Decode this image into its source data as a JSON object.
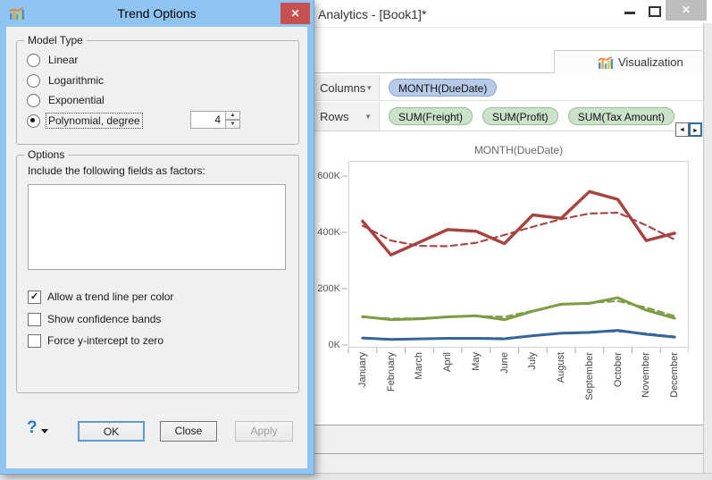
{
  "dialog": {
    "title": "Trend Options",
    "model_type": {
      "legend": "Model Type",
      "options": [
        {
          "label": "Linear",
          "selected": false
        },
        {
          "label": "Logarithmic",
          "selected": false
        },
        {
          "label": "Exponential",
          "selected": false
        },
        {
          "label": "Polynomial, degree",
          "selected": true
        }
      ],
      "degree_value": "4"
    },
    "options": {
      "legend": "Options",
      "factors_label": "Include the following fields as factors:",
      "checkboxes": [
        {
          "label": "Allow a trend line per color",
          "checked": true,
          "mark": "✓"
        },
        {
          "label": "Show confidence bands",
          "checked": false,
          "mark": ""
        },
        {
          "label": "Force y-intercept to zero",
          "checked": false,
          "mark": ""
        }
      ]
    },
    "help_label": "?",
    "buttons": {
      "ok": "OK",
      "close": "Close",
      "apply": "Apply"
    }
  },
  "window": {
    "title": "Analytics - [Book1]*",
    "tab": "Visualization",
    "shelves": {
      "columns_label": "Columns",
      "rows_label": "Rows",
      "columns_pills": [
        "MONTH(DueDate)"
      ],
      "rows_pills": [
        "SUM(Freight)",
        "SUM(Profit)",
        "SUM(Tax Amount)"
      ]
    }
  },
  "glyphs": {
    "window_close": "✕",
    "dialog_close": "✕",
    "shelf_caret": "▼",
    "spin_up": "▲",
    "spin_down": "▼",
    "scroll_left": "◄",
    "scroll_right": "►"
  },
  "colors": {
    "dialog_frame": "#8FC5F0",
    "dialog_close": "#C75050",
    "pill_blue": "#B7CBE9",
    "pill_green": "#CBE3CA",
    "series_red": "#A8423E",
    "series_green": "#7D9B42",
    "series_blue": "#36659B"
  },
  "chart_data": {
    "type": "line",
    "title": "MONTH(DueDate)",
    "categories": [
      "January",
      "February",
      "March",
      "April",
      "May",
      "June",
      "July",
      "August",
      "September",
      "October",
      "November",
      "December"
    ],
    "yticks": [
      "600K",
      "400K",
      "200K",
      "0K"
    ],
    "ylim": [
      0,
      640
    ],
    "grid": false,
    "legend": "none",
    "series": [
      {
        "name": "red-solid",
        "color": "#A8423E",
        "style": "solid",
        "values": [
          440,
          320,
          365,
          410,
          404,
          360,
          462,
          450,
          545,
          517,
          371,
          397
        ]
      },
      {
        "name": "red-trend",
        "color": "#A8423E",
        "style": "dashed",
        "values": [
          424,
          371,
          352,
          351,
          363,
          391,
          420,
          447,
          467,
          470,
          425,
          375
        ]
      },
      {
        "name": "green-solid",
        "color": "#7D9B42",
        "style": "solid",
        "values": [
          101,
          90,
          93,
          100,
          104,
          90,
          120,
          145,
          148,
          168,
          124,
          95
        ]
      },
      {
        "name": "green-trend",
        "color": "#7D9B42",
        "style": "dashed",
        "values": [
          99,
          94,
          95,
          99,
          103,
          100,
          122,
          143,
          150,
          156,
          133,
          103
        ]
      },
      {
        "name": "blue-solid",
        "color": "#36659B",
        "style": "solid",
        "values": [
          25,
          20,
          22,
          24,
          24,
          22,
          33,
          42,
          45,
          52,
          38,
          28
        ]
      },
      {
        "name": "blue-trend",
        "color": "#36659B",
        "style": "dashed",
        "values": [
          24,
          21,
          22,
          24,
          25,
          24,
          34,
          42,
          46,
          49,
          41,
          30
        ]
      }
    ]
  }
}
